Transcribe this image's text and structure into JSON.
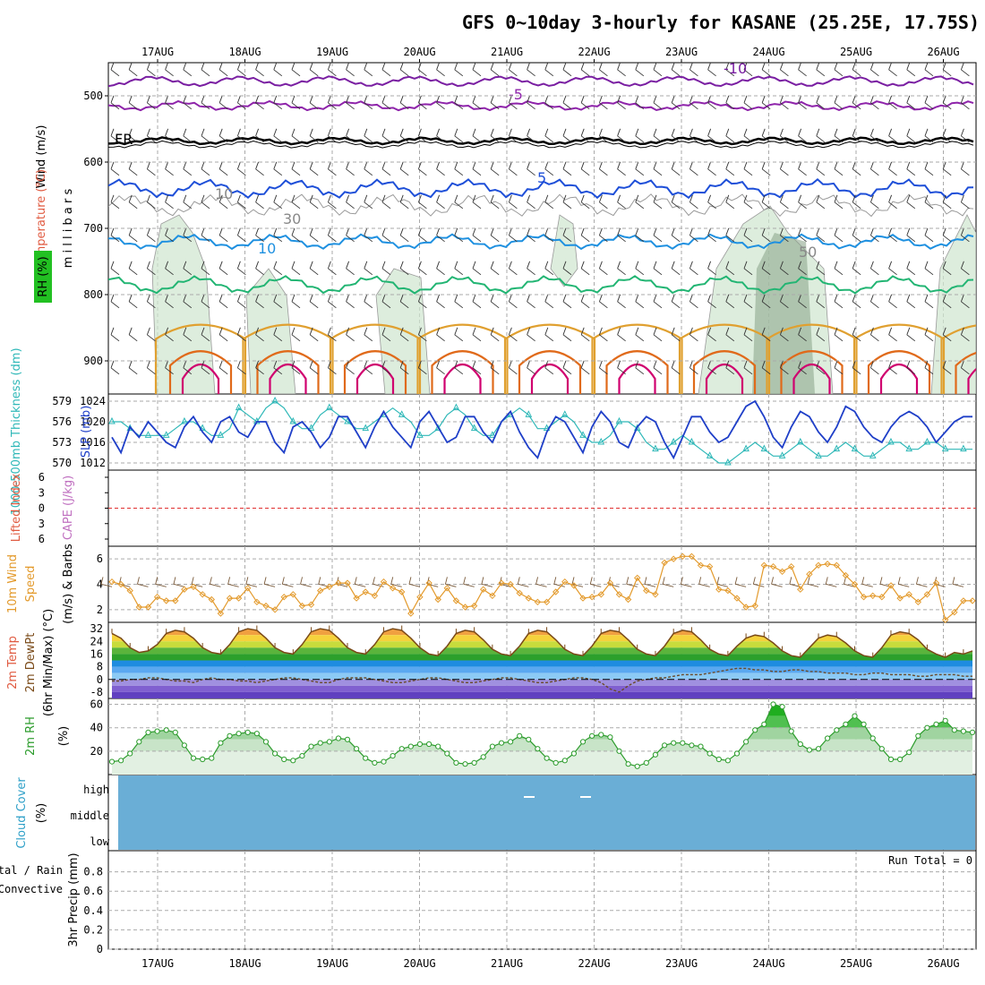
{
  "title": "GFS 0~10day 3-hourly for KASANE (25.25E, 17.75S)",
  "dates": [
    "17AUG",
    "18AUG",
    "19AUG",
    "20AUG",
    "21AUG",
    "22AUG",
    "23AUG",
    "24AUG",
    "25AUG",
    "26AUG"
  ],
  "chart_data": [
    {
      "type": "area",
      "panel": "upper-air",
      "ylabel_left": [
        "Temperature (°C)",
        "Wind (m/s)"
      ],
      "ylabel_rh": "RH (%)",
      "ylabel_right": "m i l l i b a r s",
      "yticks": [
        500,
        600,
        700,
        800,
        900
      ],
      "ylim": [
        450,
        950
      ],
      "contour_labels": [
        "-10",
        "-5",
        "FR",
        "5",
        "10",
        "10",
        "30",
        "50"
      ],
      "colors": {
        "minus10": "#7a1fa2",
        "minus5": "#8e24aa",
        "freezing": "#000000",
        "plus5": "#1e4fd8",
        "plus10": "#1e90e0",
        "plus15": "#22b573",
        "plus20": "#e0a030",
        "plus25": "#e06a1a",
        "plus30": "#d0006f",
        "rh": "#cfe6cf"
      }
    },
    {
      "type": "line",
      "panel": "pressure",
      "ylabel_left": "1000-500mb Thickness (dm)",
      "ylabel_right": "SLP (mb)",
      "yticks_left": [
        570,
        573,
        576,
        579
      ],
      "yticks_right": [
        1012,
        1016,
        1020,
        1024
      ],
      "series": [
        {
          "name": "SLP",
          "color": "#1f3fc8",
          "values": [
            1017,
            1014,
            1019,
            1017,
            1020,
            1018,
            1016,
            1015,
            1019,
            1021,
            1018,
            1016,
            1020,
            1021,
            1018,
            1017,
            1020,
            1020,
            1016,
            1014,
            1019,
            1020,
            1018,
            1015,
            1017,
            1021,
            1021,
            1018,
            1015,
            1019,
            1022,
            1019,
            1017,
            1015,
            1020,
            1022,
            1019,
            1016,
            1017,
            1021,
            1021,
            1018,
            1016,
            1020,
            1022,
            1018,
            1015,
            1013,
            1018,
            1021,
            1020,
            1017,
            1014,
            1019,
            1022,
            1020,
            1016,
            1015,
            1019,
            1021,
            1020,
            1016,
            1013,
            1017,
            1021,
            1021,
            1018,
            1016,
            1017,
            1020,
            1023,
            1024,
            1021,
            1017,
            1015,
            1019,
            1022,
            1021,
            1018,
            1016,
            1019,
            1023,
            1022,
            1019,
            1017,
            1016,
            1019,
            1021,
            1022,
            1021,
            1019,
            1016,
            1018,
            1020,
            1021,
            1021
          ]
        },
        {
          "name": "Thickness",
          "color": "#2fb8b8",
          "values": [
            576,
            576,
            575,
            574,
            574,
            574,
            574,
            575,
            576,
            576,
            575,
            574,
            574,
            575,
            578,
            577,
            576,
            578,
            579,
            578,
            576,
            575,
            575,
            577,
            578,
            577,
            576,
            575,
            575,
            576,
            577,
            578,
            577,
            576,
            574,
            574,
            575,
            577,
            578,
            577,
            575,
            574,
            574,
            576,
            577,
            578,
            577,
            575,
            575,
            576,
            577,
            576,
            574,
            573,
            573,
            574,
            576,
            576,
            575,
            573,
            572,
            572,
            573,
            574,
            573,
            572,
            571,
            570,
            570,
            571,
            572,
            573,
            572,
            571,
            571,
            572,
            573,
            572,
            571,
            571,
            572,
            573,
            572,
            571,
            571,
            572,
            573,
            573,
            572,
            572,
            573,
            573,
            572,
            572,
            572,
            572
          ]
        }
      ]
    },
    {
      "type": "line",
      "panel": "stability",
      "ylabel_left": "Lifted Index",
      "ylabel_right": "CAPE (J/kg)",
      "yticks": [
        6,
        3,
        0,
        -3,
        -6
      ],
      "tick_labels": [
        "6",
        "3",
        "0",
        "3",
        "6"
      ],
      "ylim": [
        -6,
        6
      ],
      "series": [
        {
          "name": "Lifted Index",
          "color": "#e03030",
          "values": []
        }
      ]
    },
    {
      "type": "line",
      "panel": "wind10m",
      "ylabel_left": [
        "10m Wind",
        "Speed"
      ],
      "ylabel_right": "(m/s) & Barbs",
      "yticks": [
        2,
        4,
        6
      ],
      "ylim": [
        1,
        7
      ],
      "series": [
        {
          "name": "10m Wind Speed",
          "color": "#e39a2c",
          "values": [
            4.2,
            4.0,
            3.5,
            2.2,
            2.2,
            3.0,
            2.7,
            2.7,
            3.6,
            3.8,
            3.2,
            2.8,
            1.7,
            2.9,
            2.9,
            3.7,
            2.6,
            2.3,
            2.0,
            3.0,
            3.2,
            2.3,
            2.4,
            3.5,
            3.8,
            4.1,
            4.1,
            2.9,
            3.4,
            3.1,
            4.2,
            3.7,
            3.4,
            1.7,
            3.0,
            4.1,
            2.8,
            3.7,
            2.7,
            2.2,
            2.3,
            3.6,
            3.1,
            4.1,
            4.0,
            3.3,
            2.9,
            2.6,
            2.6,
            3.4,
            4.2,
            3.9,
            2.9,
            3.0,
            3.2,
            4.1,
            3.2,
            2.8,
            4.5,
            3.5,
            3.2,
            5.7,
            6.0,
            6.2,
            6.2,
            5.5,
            5.4,
            3.6,
            3.5,
            2.9,
            2.2,
            2.3,
            5.5,
            5.4,
            5.0,
            5.4,
            3.6,
            4.8,
            5.5,
            5.6,
            5.5,
            4.7,
            4.0,
            3.0,
            3.1,
            3.0,
            3.9,
            2.9,
            3.2,
            2.6,
            3.2,
            4.1,
            1.2,
            1.8,
            2.7,
            2.7
          ]
        }
      ]
    },
    {
      "type": "area",
      "panel": "temperature",
      "ylabel": [
        "2m Temp",
        "2m DewPt",
        "(6hr Min/Max) (°C)"
      ],
      "yticks": [
        -8,
        0,
        8,
        16,
        24,
        32
      ],
      "ylim": [
        -12,
        36
      ],
      "series": [
        {
          "name": "2m Temp",
          "color": "#7a4a18",
          "values": [
            29,
            26,
            20,
            17,
            18,
            22,
            29,
            31,
            30,
            26,
            20,
            17,
            16,
            22,
            30,
            32,
            31,
            26,
            20,
            17,
            16,
            22,
            30,
            32,
            31,
            26,
            20,
            17,
            16,
            22,
            30,
            32,
            31,
            26,
            20,
            16,
            15,
            21,
            29,
            31,
            30,
            25,
            19,
            16,
            15,
            21,
            29,
            31,
            30,
            25,
            19,
            16,
            15,
            21,
            29,
            31,
            30,
            25,
            19,
            16,
            15,
            21,
            29,
            31,
            30,
            25,
            19,
            16,
            15,
            21,
            26,
            28,
            27,
            23,
            18,
            15,
            14,
            20,
            26,
            28,
            27,
            23,
            18,
            15,
            14,
            20,
            28,
            30,
            29,
            25,
            19,
            16,
            14,
            17,
            16,
            18
          ]
        },
        {
          "name": "2m DewPt",
          "color": "#6a4a2a",
          "values": [
            -1,
            -1,
            0,
            0,
            1,
            1,
            0,
            -1,
            -1,
            -2,
            0,
            1,
            0,
            0,
            -1,
            -1,
            -2,
            -1,
            0,
            1,
            1,
            0,
            -1,
            -2,
            -2,
            0,
            1,
            1,
            1,
            0,
            -1,
            -2,
            -2,
            -1,
            0,
            1,
            1,
            0,
            -1,
            -2,
            -2,
            -1,
            0,
            1,
            1,
            0,
            -1,
            -2,
            -2,
            -1,
            0,
            1,
            1,
            0,
            -2,
            -6,
            -8,
            -4,
            -1,
            0,
            1,
            1,
            2,
            3,
            3,
            3,
            4,
            5,
            6,
            7,
            7,
            6,
            6,
            5,
            5,
            6,
            6,
            5,
            5,
            4,
            4,
            4,
            3,
            3,
            4,
            4,
            3,
            3,
            3,
            2,
            2,
            3,
            3,
            3,
            2,
            2
          ]
        }
      ]
    },
    {
      "type": "area",
      "panel": "humidity",
      "ylabel": [
        "2m RH",
        "(%)"
      ],
      "yticks": [
        20,
        40,
        60
      ],
      "ylim": [
        0,
        65
      ],
      "series": [
        {
          "name": "2m RH",
          "color": "#2c9c2c",
          "values": [
            11,
            12,
            18,
            28,
            36,
            37,
            38,
            36,
            25,
            14,
            13,
            14,
            27,
            33,
            35,
            36,
            35,
            28,
            18,
            13,
            12,
            16,
            24,
            27,
            28,
            31,
            30,
            22,
            14,
            10,
            11,
            16,
            22,
            24,
            26,
            26,
            24,
            18,
            10,
            9,
            10,
            15,
            24,
            27,
            28,
            33,
            30,
            22,
            14,
            10,
            12,
            18,
            28,
            33,
            34,
            32,
            20,
            9,
            7,
            10,
            17,
            25,
            27,
            27,
            25,
            24,
            18,
            13,
            12,
            18,
            28,
            38,
            43,
            60,
            58,
            37,
            26,
            21,
            22,
            31,
            38,
            43,
            50,
            43,
            31,
            22,
            13,
            13,
            19,
            33,
            40,
            43,
            46,
            38,
            37,
            36
          ]
        }
      ]
    },
    {
      "type": "heatmap",
      "panel": "cloud",
      "ylabel": [
        "Cloud Cover",
        "(%)"
      ],
      "levels": [
        "high",
        "middle",
        "low"
      ],
      "fill_color": "#6aaed6"
    },
    {
      "type": "bar",
      "panel": "precip",
      "ylabel": [
        "Total / Rain",
        "Convective",
        "3hr Precip (mm)"
      ],
      "yticks": [
        0,
        0.2,
        0.4,
        0.6,
        0.8
      ],
      "ylim": [
        0,
        1
      ],
      "annotation": "Run Total = 0",
      "values": []
    }
  ]
}
